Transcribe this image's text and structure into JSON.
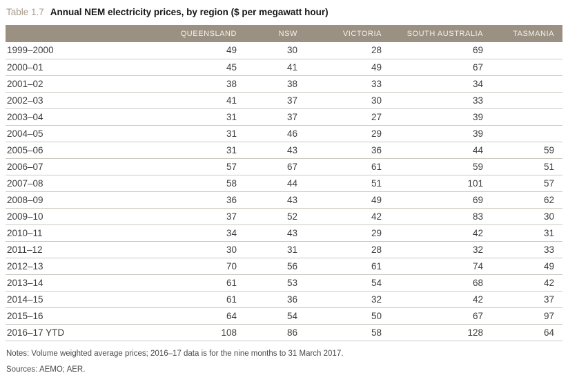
{
  "title": {
    "label": "Table 1.7",
    "text": "Annual NEM electricity prices, by region ($ per megawatt hour)"
  },
  "table": {
    "columns": [
      "QUEENSLAND",
      "NSW",
      "VICTORIA",
      "SOUTH AUSTRALIA",
      "TASMANIA"
    ],
    "rows": [
      {
        "year": "1999–2000",
        "values": [
          49,
          30,
          28,
          69,
          null
        ]
      },
      {
        "year": "2000–01",
        "values": [
          45,
          41,
          49,
          67,
          null
        ]
      },
      {
        "year": "2001–02",
        "values": [
          38,
          38,
          33,
          34,
          null
        ]
      },
      {
        "year": "2002–03",
        "values": [
          41,
          37,
          30,
          33,
          null
        ]
      },
      {
        "year": "2003–04",
        "values": [
          31,
          37,
          27,
          39,
          null
        ]
      },
      {
        "year": "2004–05",
        "values": [
          31,
          46,
          29,
          39,
          null
        ]
      },
      {
        "year": "2005–06",
        "values": [
          31,
          43,
          36,
          44,
          59
        ]
      },
      {
        "year": "2006–07",
        "values": [
          57,
          67,
          61,
          59,
          51
        ]
      },
      {
        "year": "2007–08",
        "values": [
          58,
          44,
          51,
          101,
          57
        ]
      },
      {
        "year": "2008–09",
        "values": [
          36,
          43,
          49,
          69,
          62
        ]
      },
      {
        "year": "2009–10",
        "values": [
          37,
          52,
          42,
          83,
          30
        ]
      },
      {
        "year": "2010–11",
        "values": [
          34,
          43,
          29,
          42,
          31
        ]
      },
      {
        "year": "2011–12",
        "values": [
          30,
          31,
          28,
          32,
          33
        ]
      },
      {
        "year": "2012–13",
        "values": [
          70,
          56,
          61,
          74,
          49
        ]
      },
      {
        "year": "2013–14",
        "values": [
          61,
          53,
          54,
          68,
          42
        ]
      },
      {
        "year": "2014–15",
        "values": [
          61,
          36,
          32,
          42,
          37
        ]
      },
      {
        "year": "2015–16",
        "values": [
          64,
          54,
          50,
          67,
          97
        ]
      },
      {
        "year": "2016–17 YTD",
        "values": [
          108,
          86,
          58,
          128,
          64
        ]
      }
    ]
  },
  "notes": "Notes: Volume weighted average prices; 2016–17 data is for the nine months to 31 March 2017.",
  "sources": "Sources: AEMO; AER.",
  "colors": {
    "accent": "#a69a8b",
    "header_bg": "#9b9183",
    "header_text": "#f4f2ef",
    "row_border": "#ccc8c1",
    "cell_text": "#3c3c3c",
    "note_text": "#4a4a4a"
  },
  "chart_data": {
    "type": "table",
    "title": "Annual NEM electricity prices, by region ($ per megawatt hour)",
    "categories": [
      "QUEENSLAND",
      "NSW",
      "VICTORIA",
      "SOUTH AUSTRALIA",
      "TASMANIA"
    ],
    "x": [
      "1999–2000",
      "2000–01",
      "2001–02",
      "2002–03",
      "2003–04",
      "2004–05",
      "2005–06",
      "2006–07",
      "2007–08",
      "2008–09",
      "2009–10",
      "2010–11",
      "2011–12",
      "2012–13",
      "2013–14",
      "2014–15",
      "2015–16",
      "2016–17 YTD"
    ],
    "series": [
      {
        "name": "QUEENSLAND",
        "values": [
          49,
          45,
          38,
          41,
          31,
          31,
          31,
          57,
          58,
          36,
          37,
          34,
          30,
          70,
          61,
          61,
          64,
          108
        ]
      },
      {
        "name": "NSW",
        "values": [
          30,
          41,
          38,
          37,
          37,
          46,
          43,
          67,
          44,
          43,
          52,
          43,
          31,
          56,
          53,
          36,
          54,
          86
        ]
      },
      {
        "name": "VICTORIA",
        "values": [
          28,
          49,
          33,
          30,
          27,
          29,
          36,
          61,
          51,
          49,
          42,
          29,
          28,
          61,
          54,
          32,
          50,
          58
        ]
      },
      {
        "name": "SOUTH AUSTRALIA",
        "values": [
          69,
          67,
          34,
          33,
          39,
          39,
          44,
          59,
          101,
          69,
          83,
          42,
          32,
          74,
          68,
          42,
          67,
          128
        ]
      },
      {
        "name": "TASMANIA",
        "values": [
          null,
          null,
          null,
          null,
          null,
          null,
          59,
          51,
          57,
          62,
          30,
          31,
          33,
          49,
          42,
          37,
          97,
          64
        ]
      }
    ]
  }
}
